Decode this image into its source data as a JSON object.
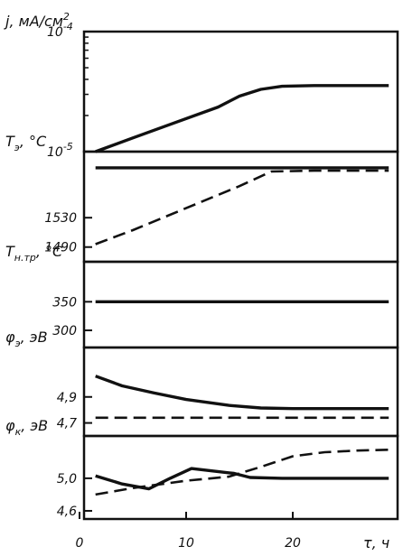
{
  "chart_data": {
    "type": "line",
    "x_axis": {
      "label": "τ, ч",
      "ticks": [
        0,
        10,
        20
      ],
      "tick_labels": [
        "0",
        "10",
        "20"
      ],
      "range": [
        0,
        29
      ]
    },
    "panels": [
      {
        "id": "current-density",
        "ylabel_main": "j, мА/см",
        "ylabel_sup": "2",
        "scale": "log",
        "ylim": [
          1e-05,
          0.0001
        ],
        "tick_labels": [
          {
            "value": 0.0001,
            "mant": "10",
            "exp": "-4"
          },
          {
            "value": 1e-05,
            "mant": "10",
            "exp": "-5"
          }
        ],
        "series": [
          {
            "style": "solid",
            "x": [
              1.5,
              5,
              9,
              13,
              15,
              17,
              19,
              22,
              25,
              29
            ],
            "y": [
              1e-05,
              1.3e-05,
              1.75e-05,
              2.35e-05,
              2.9e-05,
              3.3e-05,
              3.5e-05,
              3.55e-05,
              3.55e-05,
              3.55e-05
            ]
          }
        ]
      },
      {
        "id": "emitter-temperature",
        "ylabel_main": "T",
        "ylabel_sub": "э",
        "ylabel_unit": ", °C",
        "ylim": [
          1470,
          1620
        ],
        "ticks": [
          1530,
          1490
        ],
        "tick_labels": [
          "1530",
          "1490"
        ],
        "series": [
          {
            "style": "solid",
            "x": [
              1.5,
              29
            ],
            "y": [
              1598,
              1598
            ]
          },
          {
            "style": "dashed",
            "x": [
              1.5,
              5,
              10,
              15,
              18,
              22,
              29
            ],
            "y": [
              1494,
              1513,
              1543,
              1573,
              1593,
              1594,
              1594
            ]
          }
        ]
      },
      {
        "id": "bottom-temperature",
        "ylabel_main": "T",
        "ylabel_sub": "н.тр",
        "ylabel_unit": ", °C",
        "ylim": [
          270,
          420
        ],
        "ticks": [
          350,
          300
        ],
        "tick_labels": [
          "350",
          "300"
        ],
        "series": [
          {
            "style": "solid",
            "x": [
              1.5,
              29
            ],
            "y": [
              350,
              350
            ]
          }
        ]
      },
      {
        "id": "emitter-potential",
        "ylabel_main": "φ",
        "ylabel_sub": "э",
        "ylabel_unit": ", эВ",
        "ylim": [
          4.6,
          5.28
        ],
        "ticks": [
          4.9,
          4.7
        ],
        "tick_labels": [
          "4,9",
          "4,7"
        ],
        "series": [
          {
            "style": "solid",
            "x": [
              1.5,
              4,
              7,
              10,
              14,
              17,
              20,
              25,
              29
            ],
            "y": [
              5.06,
              4.985,
              4.93,
              4.88,
              4.835,
              4.815,
              4.81,
              4.81,
              4.81
            ]
          },
          {
            "style": "dashed",
            "x": [
              1.5,
              29
            ],
            "y": [
              4.74,
              4.74
            ]
          }
        ]
      },
      {
        "id": "collector-potential",
        "ylabel_main": "φ",
        "ylabel_sub": "к",
        "ylabel_unit": ", эВ",
        "ylim": [
          4.5,
          5.52
        ],
        "ticks": [
          5.0,
          4.6
        ],
        "tick_labels": [
          "5,0",
          "4,6"
        ],
        "series": [
          {
            "style": "solid",
            "x": [
              1.5,
              4,
              6.5,
              8.5,
              10.5,
              12.5,
              14.5,
              16,
              19,
              25,
              29
            ],
            "y": [
              5.03,
              4.93,
              4.87,
              5.0,
              5.12,
              5.09,
              5.06,
              5.01,
              5.0,
              5.0,
              5.0
            ]
          },
          {
            "style": "dashed",
            "x": [
              1.5,
              5,
              10,
              14,
              17,
              20,
              23,
              26,
              29
            ],
            "y": [
              4.8,
              4.88,
              4.97,
              5.02,
              5.14,
              5.27,
              5.32,
              5.34,
              5.35
            ]
          }
        ]
      }
    ]
  }
}
